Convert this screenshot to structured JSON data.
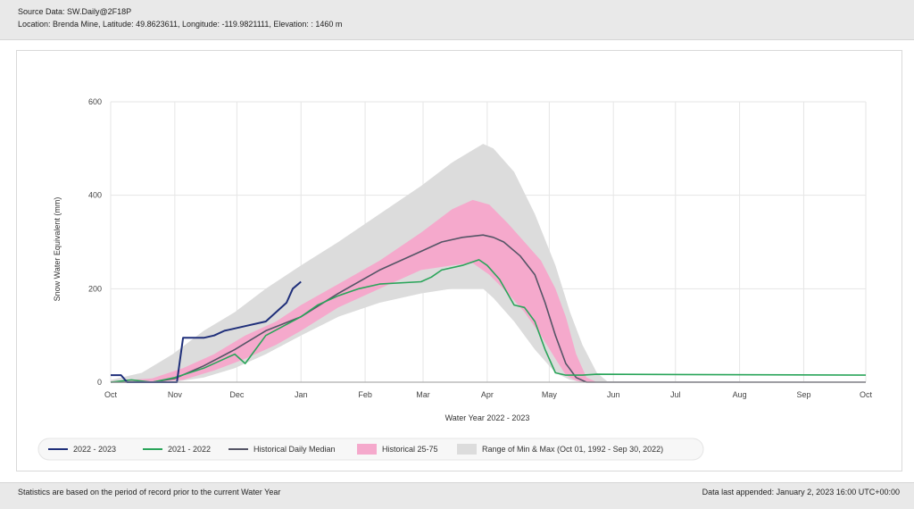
{
  "header": {
    "source": "Source Data: SW.Daily@2F18P",
    "location": "Location: Brenda Mine, Latitude: 49.8623611, Longitude: -119.9821111, Elevation: : 1460 m"
  },
  "footer": {
    "note": "Statistics are based on the period of record prior to the current Water Year",
    "appended": "Data last appended: January 2, 2023 16:00 UTC+00:00"
  },
  "colors": {
    "current": "#1f2f7a",
    "last_year": "#2aa55a",
    "median": "#555566",
    "p25_75": "#f5a9cc",
    "minmax": "#dcdcdc"
  },
  "chart_data": {
    "type": "area",
    "title": "",
    "xlabel": "Water Year 2022 - 2023",
    "ylabel": "Snow Water Equivalent (mm)",
    "ylim": [
      0,
      600
    ],
    "yticks": [
      0,
      200,
      400,
      600
    ],
    "x_unit": "days since Oct 1",
    "xlim": [
      0,
      365
    ],
    "xticks": [
      {
        "day": 0,
        "label": "Oct"
      },
      {
        "day": 31,
        "label": "Nov"
      },
      {
        "day": 61,
        "label": "Dec"
      },
      {
        "day": 92,
        "label": "Jan"
      },
      {
        "day": 123,
        "label": "Feb"
      },
      {
        "day": 151,
        "label": "Mar"
      },
      {
        "day": 182,
        "label": "Apr"
      },
      {
        "day": 212,
        "label": "May"
      },
      {
        "day": 243,
        "label": "Jun"
      },
      {
        "day": 273,
        "label": "Jul"
      },
      {
        "day": 304,
        "label": "Aug"
      },
      {
        "day": 335,
        "label": "Sep"
      },
      {
        "day": 365,
        "label": "Oct"
      }
    ],
    "grid": true,
    "legend_position": "bottom",
    "legend": {
      "current": "2022 - 2023",
      "last_year": "2021 - 2022",
      "median": "Historical Daily Median",
      "p25_75": "Historical 25-75",
      "minmax": "Range of Min & Max (Oct 01, 1992 - Sep 30, 2022)"
    },
    "bands": [
      {
        "key": "minmax",
        "x": [
          0,
          15,
          30,
          45,
          60,
          75,
          92,
          110,
          130,
          150,
          165,
          180,
          185,
          195,
          205,
          215,
          222,
          228,
          235,
          240,
          365
        ],
        "upper": [
          5,
          20,
          60,
          110,
          150,
          200,
          250,
          300,
          360,
          420,
          470,
          510,
          500,
          450,
          360,
          250,
          150,
          80,
          20,
          2,
          2
        ],
        "lower": [
          0,
          0,
          0,
          10,
          30,
          60,
          100,
          140,
          170,
          190,
          200,
          200,
          180,
          130,
          70,
          20,
          5,
          0,
          0,
          0,
          0
        ]
      },
      {
        "key": "p25_75",
        "x": [
          0,
          20,
          35,
          50,
          65,
          80,
          92,
          110,
          130,
          150,
          165,
          175,
          183,
          192,
          200,
          208,
          215,
          220,
          225,
          230,
          235,
          365
        ],
        "upper": [
          2,
          8,
          30,
          60,
          100,
          130,
          165,
          210,
          260,
          320,
          370,
          390,
          380,
          340,
          300,
          260,
          200,
          140,
          60,
          10,
          0,
          0
        ],
        "lower": [
          0,
          0,
          5,
          25,
          50,
          80,
          110,
          160,
          200,
          240,
          250,
          255,
          230,
          190,
          150,
          100,
          50,
          15,
          3,
          0,
          0,
          0
        ]
      }
    ],
    "series": [
      {
        "key": "median",
        "x": [
          0,
          20,
          31,
          45,
          60,
          75,
          92,
          110,
          130,
          150,
          160,
          170,
          180,
          185,
          190,
          198,
          205,
          210,
          215,
          220,
          225,
          230,
          365
        ],
        "values": [
          0,
          0,
          8,
          35,
          70,
          110,
          140,
          190,
          240,
          280,
          300,
          310,
          315,
          310,
          300,
          270,
          230,
          170,
          100,
          40,
          10,
          0,
          0
        ]
      },
      {
        "key": "last_year",
        "x": [
          0,
          10,
          20,
          31,
          45,
          55,
          60,
          65,
          75,
          92,
          100,
          110,
          120,
          130,
          150,
          155,
          160,
          170,
          178,
          182,
          188,
          195,
          200,
          205,
          210,
          215,
          220,
          228,
          235,
          365
        ],
        "values": [
          0,
          5,
          0,
          10,
          30,
          50,
          60,
          40,
          100,
          140,
          165,
          185,
          200,
          210,
          215,
          225,
          240,
          250,
          262,
          250,
          220,
          165,
          160,
          130,
          70,
          20,
          15,
          15,
          17,
          15
        ]
      },
      {
        "key": "current",
        "x": [
          0,
          5,
          8,
          10,
          32,
          35,
          45,
          50,
          55,
          60,
          65,
          75,
          80,
          85,
          88,
          92
        ],
        "values": [
          15,
          15,
          0,
          0,
          0,
          95,
          95,
          100,
          110,
          115,
          120,
          130,
          150,
          170,
          200,
          215
        ]
      }
    ]
  }
}
